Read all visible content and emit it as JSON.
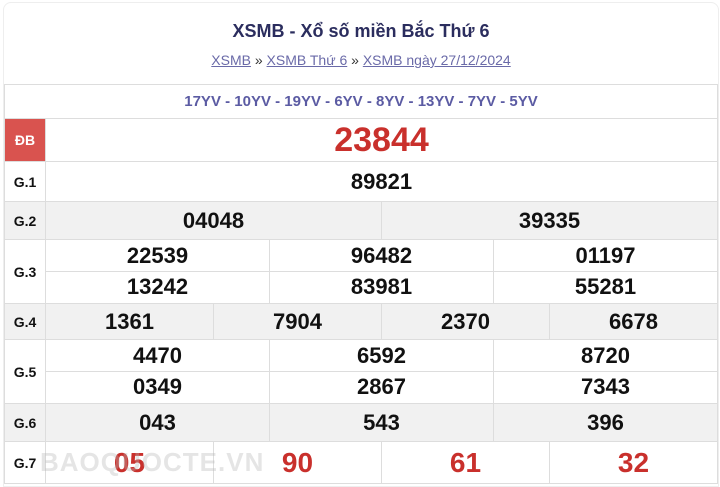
{
  "header": {
    "title": "XSMB - Xổ số miền Bắc Thứ 6",
    "breadcrumb": [
      "XSMB",
      "XSMB Thứ 6",
      "XSMB ngày 27/12/2024"
    ],
    "separator": "»"
  },
  "codes": "17YV - 10YV - 19YV - 6YV - 8YV - 13YV - 7YV - 5YV",
  "prizes": {
    "db": {
      "label": "ĐB",
      "numbers": [
        "23844"
      ]
    },
    "g1": {
      "label": "G.1",
      "numbers": [
        "89821"
      ]
    },
    "g2": {
      "label": "G.2",
      "numbers": [
        "04048",
        "39335"
      ]
    },
    "g3": {
      "label": "G.3",
      "numbers": [
        "22539",
        "96482",
        "01197",
        "13242",
        "83981",
        "55281"
      ]
    },
    "g4": {
      "label": "G.4",
      "numbers": [
        "1361",
        "7904",
        "2370",
        "6678"
      ]
    },
    "g5": {
      "label": "G.5",
      "numbers": [
        "4470",
        "6592",
        "8720",
        "0349",
        "2867",
        "7343"
      ]
    },
    "g6": {
      "label": "G.6",
      "numbers": [
        "043",
        "543",
        "396"
      ]
    },
    "g7": {
      "label": "G.7",
      "numbers": [
        "05",
        "90",
        "61",
        "32"
      ]
    }
  },
  "watermark": "BAOQUOCTE.VN",
  "colors": {
    "accent_red": "#c9302c",
    "title": "#2b2d5e",
    "codes": "#5b5ba3"
  }
}
